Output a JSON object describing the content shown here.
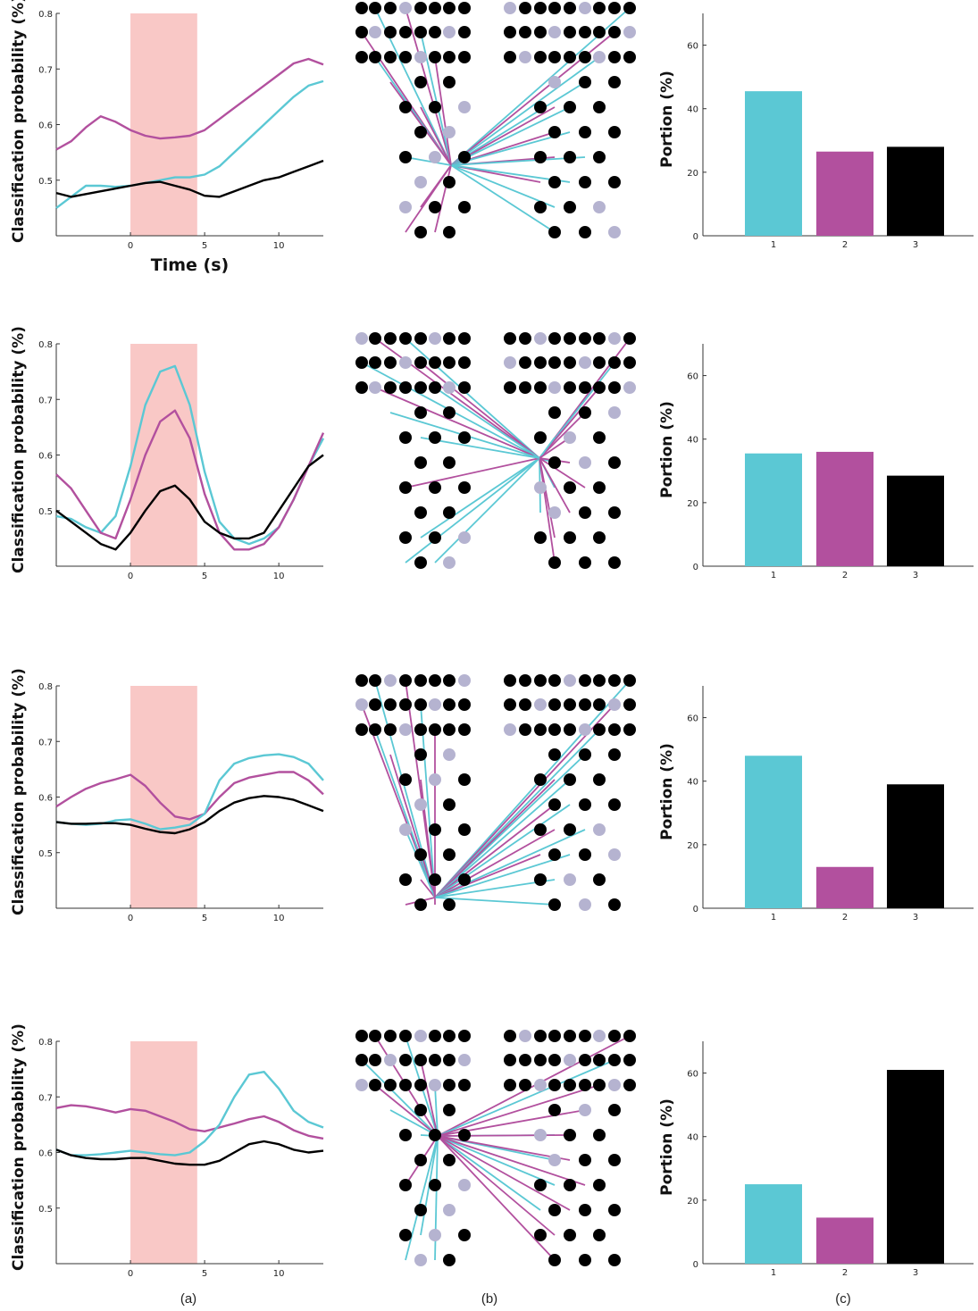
{
  "colors": {
    "cyan": "#5bc8d4",
    "magenta": "#b2509e",
    "black": "#000000",
    "shade": "#f9c8c6",
    "electrode_grey": "#b5b3d0"
  },
  "panel_labels": [
    "(a)",
    "(b)",
    "(c)"
  ],
  "chart_data": [
    {
      "type": "line",
      "row": 1,
      "xlabel": "Time (s)",
      "ylabel": "Classification probability (%)",
      "xlim": [
        -5,
        13
      ],
      "ylim": [
        0.4,
        0.8
      ],
      "xticks": [
        "0",
        "5",
        "10"
      ],
      "yticks": [
        "0.5",
        "0.6",
        "0.7",
        "0.8"
      ],
      "shaded_interval": [
        0,
        4.5
      ],
      "x": [
        -5,
        -4,
        -3,
        -2,
        -1,
        0,
        1,
        2,
        3,
        4,
        5,
        6,
        7,
        8,
        9,
        10,
        11,
        12,
        13
      ],
      "series": [
        {
          "color": "magenta",
          "values": [
            0.555,
            0.57,
            0.595,
            0.615,
            0.605,
            0.59,
            0.58,
            0.575,
            0.577,
            0.58,
            0.59,
            0.61,
            0.63,
            0.65,
            0.67,
            0.69,
            0.71,
            0.718,
            0.708
          ]
        },
        {
          "color": "cyan",
          "values": [
            0.45,
            0.47,
            0.49,
            0.49,
            0.488,
            0.49,
            0.495,
            0.5,
            0.505,
            0.505,
            0.51,
            0.525,
            0.55,
            0.575,
            0.6,
            0.625,
            0.65,
            0.67,
            0.678
          ]
        },
        {
          "color": "black",
          "values": [
            0.477,
            0.47,
            0.475,
            0.48,
            0.485,
            0.49,
            0.495,
            0.497,
            0.49,
            0.483,
            0.472,
            0.47,
            0.48,
            0.49,
            0.5,
            0.505,
            0.515,
            0.525,
            0.535
          ]
        }
      ]
    },
    {
      "type": "bar",
      "row": 1,
      "ylabel": "Portion (%)",
      "ylim": [
        0,
        70
      ],
      "yticks": [
        "0",
        "20",
        "40",
        "60"
      ],
      "categories": [
        "1",
        "2",
        "3"
      ],
      "values": [
        45.5,
        26.5,
        28
      ],
      "colors": [
        "cyan",
        "magenta",
        "black"
      ]
    },
    {
      "type": "line",
      "row": 2,
      "xlabel": "",
      "ylabel": "Classification probability (%)",
      "xlim": [
        -5,
        13
      ],
      "ylim": [
        0.4,
        0.8
      ],
      "xticks": [
        "0",
        "5",
        "10"
      ],
      "yticks": [
        "0.5",
        "0.6",
        "0.7",
        "0.8"
      ],
      "shaded_interval": [
        0,
        4.5
      ],
      "x": [
        -5,
        -4,
        -3,
        -2,
        -1,
        0,
        1,
        2,
        3,
        4,
        5,
        6,
        7,
        8,
        9,
        10,
        11,
        12,
        13
      ],
      "series": [
        {
          "color": "cyan",
          "values": [
            0.49,
            0.485,
            0.47,
            0.46,
            0.49,
            0.58,
            0.69,
            0.75,
            0.76,
            0.69,
            0.57,
            0.48,
            0.45,
            0.44,
            0.45,
            0.47,
            0.52,
            0.58,
            0.63
          ]
        },
        {
          "color": "magenta",
          "values": [
            0.565,
            0.54,
            0.5,
            0.46,
            0.45,
            0.52,
            0.6,
            0.66,
            0.68,
            0.63,
            0.53,
            0.46,
            0.43,
            0.43,
            0.44,
            0.47,
            0.52,
            0.58,
            0.64
          ]
        },
        {
          "color": "black",
          "values": [
            0.5,
            0.48,
            0.46,
            0.44,
            0.43,
            0.46,
            0.5,
            0.535,
            0.545,
            0.52,
            0.48,
            0.46,
            0.45,
            0.45,
            0.46,
            0.5,
            0.54,
            0.58,
            0.6
          ]
        }
      ]
    },
    {
      "type": "bar",
      "row": 2,
      "ylabel": "Portion (%)",
      "ylim": [
        0,
        70
      ],
      "yticks": [
        "0",
        "20",
        "40",
        "60"
      ],
      "categories": [
        "1",
        "2",
        "3"
      ],
      "values": [
        35.5,
        36,
        28.5
      ],
      "colors": [
        "cyan",
        "magenta",
        "black"
      ]
    },
    {
      "type": "line",
      "row": 3,
      "xlabel": "",
      "ylabel": "Classification probability (%)",
      "xlim": [
        -5,
        13
      ],
      "ylim": [
        0.4,
        0.8
      ],
      "xticks": [
        "0",
        "5",
        "10"
      ],
      "yticks": [
        "0.5",
        "0.6",
        "0.7",
        "0.8"
      ],
      "shaded_interval": [
        0,
        4.5
      ],
      "x": [
        -5,
        -4,
        -3,
        -2,
        -1,
        0,
        1,
        2,
        3,
        4,
        5,
        6,
        7,
        8,
        9,
        10,
        11,
        12,
        13
      ],
      "series": [
        {
          "color": "magenta",
          "values": [
            0.583,
            0.6,
            0.615,
            0.625,
            0.632,
            0.64,
            0.62,
            0.59,
            0.565,
            0.56,
            0.57,
            0.6,
            0.625,
            0.635,
            0.64,
            0.645,
            0.645,
            0.63,
            0.605
          ]
        },
        {
          "color": "cyan",
          "values": [
            0.555,
            0.552,
            0.55,
            0.552,
            0.558,
            0.56,
            0.552,
            0.542,
            0.545,
            0.55,
            0.57,
            0.63,
            0.66,
            0.67,
            0.675,
            0.677,
            0.672,
            0.66,
            0.63
          ]
        },
        {
          "color": "black",
          "values": [
            0.555,
            0.552,
            0.552,
            0.553,
            0.553,
            0.55,
            0.543,
            0.537,
            0.535,
            0.542,
            0.555,
            0.575,
            0.59,
            0.598,
            0.602,
            0.6,
            0.595,
            0.585,
            0.575
          ]
        }
      ]
    },
    {
      "type": "bar",
      "row": 3,
      "ylabel": "Portion (%)",
      "ylim": [
        0,
        70
      ],
      "yticks": [
        "0",
        "20",
        "40",
        "60"
      ],
      "categories": [
        "1",
        "2",
        "3"
      ],
      "values": [
        48,
        13,
        39
      ],
      "colors": [
        "cyan",
        "magenta",
        "black"
      ]
    },
    {
      "type": "line",
      "row": 4,
      "xlabel": "",
      "ylabel": "Classification probability (%)",
      "xlim": [
        -5,
        13
      ],
      "ylim": [
        0.4,
        0.8
      ],
      "xticks": [
        "0",
        "5",
        "10"
      ],
      "yticks": [
        "0.5",
        "0.6",
        "0.7",
        "0.8"
      ],
      "shaded_interval": [
        0,
        4.5
      ],
      "x": [
        -5,
        -4,
        -3,
        -2,
        -1,
        0,
        1,
        2,
        3,
        4,
        5,
        6,
        7,
        8,
        9,
        10,
        11,
        12,
        13
      ],
      "series": [
        {
          "color": "magenta",
          "values": [
            0.68,
            0.685,
            0.683,
            0.678,
            0.672,
            0.678,
            0.675,
            0.665,
            0.655,
            0.642,
            0.638,
            0.645,
            0.652,
            0.66,
            0.665,
            0.655,
            0.64,
            0.63,
            0.625
          ]
        },
        {
          "color": "cyan",
          "values": [
            0.605,
            0.595,
            0.595,
            0.597,
            0.6,
            0.603,
            0.6,
            0.597,
            0.595,
            0.6,
            0.62,
            0.65,
            0.7,
            0.74,
            0.745,
            0.715,
            0.675,
            0.655,
            0.645
          ]
        },
        {
          "color": "black",
          "values": [
            0.605,
            0.595,
            0.59,
            0.588,
            0.588,
            0.59,
            0.59,
            0.585,
            0.58,
            0.578,
            0.578,
            0.585,
            0.6,
            0.615,
            0.62,
            0.615,
            0.605,
            0.6,
            0.603
          ]
        }
      ]
    },
    {
      "type": "bar",
      "row": 4,
      "ylabel": "Portion (%)",
      "ylim": [
        0,
        70
      ],
      "yticks": [
        "0",
        "20",
        "40",
        "60"
      ],
      "categories": [
        "1",
        "2",
        "3"
      ],
      "values": [
        25,
        14.5,
        61
      ],
      "colors": [
        "cyan",
        "magenta",
        "black"
      ]
    }
  ]
}
